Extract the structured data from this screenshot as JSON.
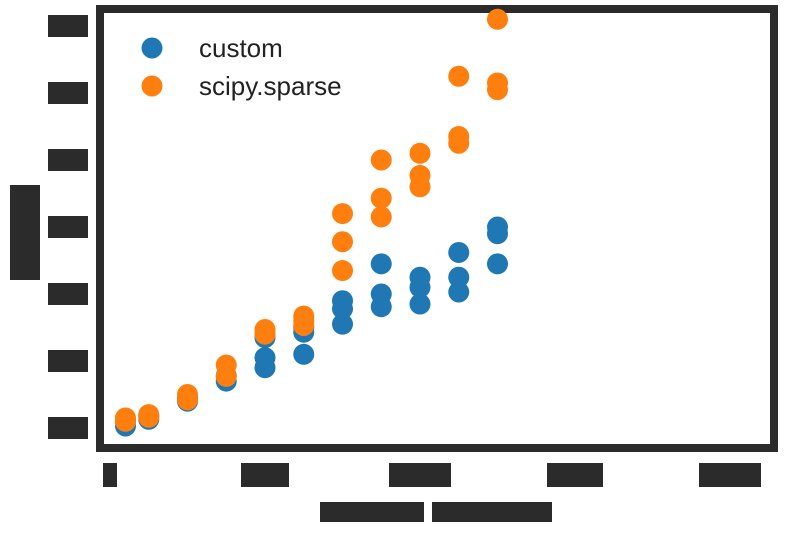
{
  "chart_data": {
    "type": "scatter",
    "title": "",
    "xlabel": "",
    "ylabel": "",
    "xlim": [
      -0.1,
      5.1
    ],
    "ylim": [
      -0.25,
      6.45
    ],
    "xticks": [
      0,
      1,
      2,
      3,
      4,
      5
    ],
    "yticks": [
      0,
      1,
      2,
      3,
      4,
      5,
      6
    ],
    "tick_labels_legible": false,
    "grid": false,
    "legend": "top-left",
    "series": [
      {
        "name": "custom",
        "color": "#1f77b4",
        "points": [
          [
            0.1,
            0.03
          ],
          [
            0.1,
            0.1
          ],
          [
            0.25,
            0.13
          ],
          [
            0.25,
            0.18
          ],
          [
            0.5,
            0.4
          ],
          [
            0.5,
            0.45
          ],
          [
            0.75,
            0.7
          ],
          [
            0.75,
            0.78
          ],
          [
            1.0,
            0.9
          ],
          [
            1.0,
            1.05
          ],
          [
            1.0,
            1.35
          ],
          [
            1.25,
            1.1
          ],
          [
            1.25,
            1.43
          ],
          [
            1.25,
            1.5
          ],
          [
            1.5,
            1.55
          ],
          [
            1.5,
            1.78
          ],
          [
            1.5,
            1.9
          ],
          [
            1.75,
            1.81
          ],
          [
            1.75,
            2.0
          ],
          [
            1.75,
            2.45
          ],
          [
            2.0,
            1.85
          ],
          [
            2.0,
            2.1
          ],
          [
            2.0,
            2.25
          ],
          [
            2.25,
            2.03
          ],
          [
            2.25,
            2.25
          ],
          [
            2.25,
            2.62
          ],
          [
            2.5,
            2.45
          ],
          [
            2.5,
            2.9
          ],
          [
            2.5,
            3.0
          ]
        ]
      },
      {
        "name": "scipy.sparse",
        "color": "#ff7f0e",
        "points": [
          [
            0.1,
            0.1
          ],
          [
            0.1,
            0.15
          ],
          [
            0.25,
            0.16
          ],
          [
            0.25,
            0.2
          ],
          [
            0.5,
            0.42
          ],
          [
            0.5,
            0.5
          ],
          [
            0.75,
            0.77
          ],
          [
            0.75,
            0.94
          ],
          [
            1.0,
            1.4
          ],
          [
            1.0,
            1.47
          ],
          [
            1.25,
            1.53
          ],
          [
            1.25,
            1.6
          ],
          [
            1.25,
            1.67
          ],
          [
            1.5,
            2.35
          ],
          [
            1.5,
            2.78
          ],
          [
            1.5,
            3.2
          ],
          [
            1.75,
            3.15
          ],
          [
            1.75,
            3.43
          ],
          [
            1.75,
            4.0
          ],
          [
            2.0,
            3.6
          ],
          [
            2.0,
            3.77
          ],
          [
            2.0,
            4.1
          ],
          [
            2.25,
            4.25
          ],
          [
            2.25,
            4.35
          ],
          [
            2.25,
            5.25
          ],
          [
            2.5,
            5.05
          ],
          [
            2.5,
            5.15
          ],
          [
            2.5,
            6.1
          ]
        ]
      }
    ]
  }
}
